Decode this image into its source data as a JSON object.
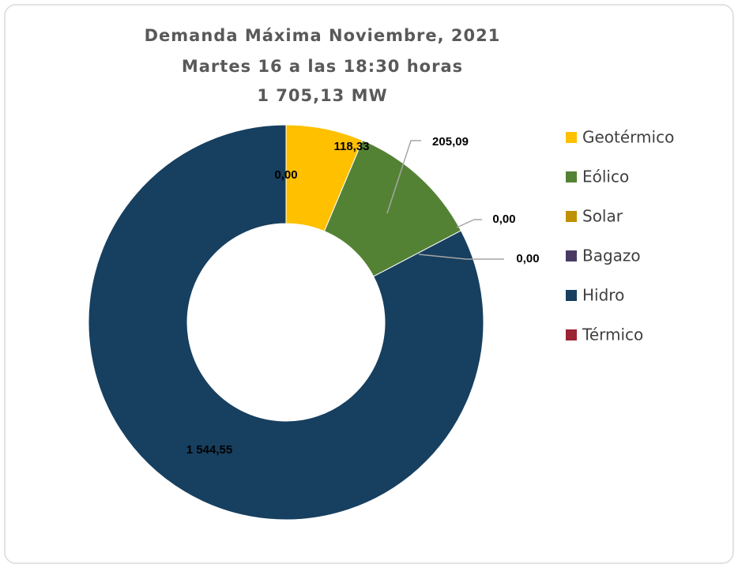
{
  "chart_data": {
    "type": "donut",
    "title": [
      "Demanda Máxima Noviembre, 2021",
      "Martes 16 a las 18:30 horas",
      "1 705,13 MW"
    ],
    "categories": [
      "Geotérmico",
      "Eólico",
      "Solar",
      "Bagazo",
      "Hidro",
      "Térmico"
    ],
    "values": [
      118.33,
      205.09,
      0,
      0,
      1544.55,
      0
    ],
    "value_labels": [
      "118,33",
      "205,09",
      "0,00",
      "0,00",
      "1 544,55",
      "0,00"
    ],
    "colors": [
      "#ffc000",
      "#548235",
      "#bf9000",
      "#4a3a63",
      "#173f5f",
      "#9b2335"
    ],
    "legend": "right"
  }
}
